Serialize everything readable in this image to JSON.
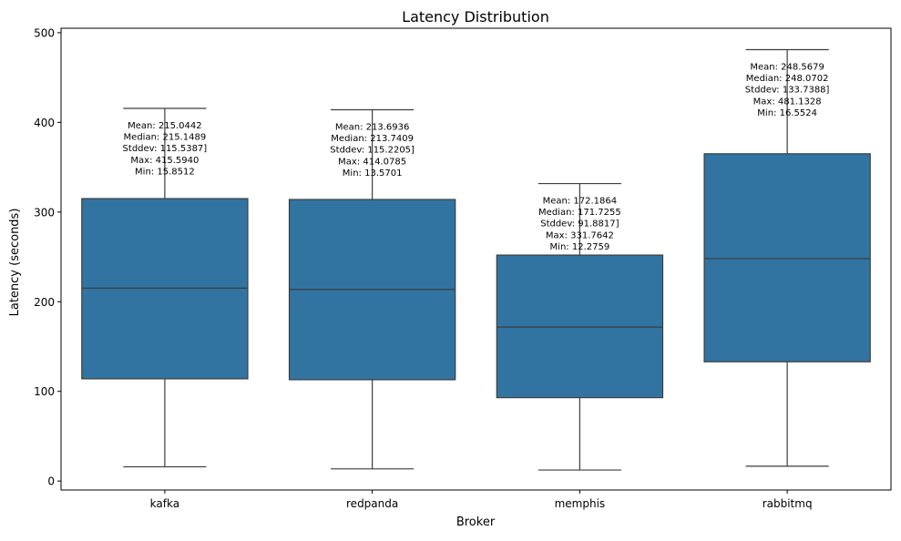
{
  "chart_data": {
    "type": "box",
    "title": "Latency Distribution",
    "xlabel": "Broker",
    "ylabel": "Latency (seconds)",
    "ylim": [
      -10,
      505
    ],
    "yticks": [
      0,
      100,
      200,
      300,
      400,
      500
    ],
    "grid": false,
    "box_color": "#3274a1",
    "categories": [
      "kafka",
      "redpanda",
      "memphis",
      "rabbitmq"
    ],
    "boxes": [
      {
        "category": "kafka",
        "min": 15.8512,
        "q1": 114,
        "median": 215.1489,
        "q3": 315,
        "max": 415.594,
        "annotation": [
          "Mean: 215.0442",
          "Median: 215.1489",
          "Stddev: 115.5387]",
          "Max: 415.5940",
          "Min: 15.8512"
        ]
      },
      {
        "category": "redpanda",
        "min": 13.5701,
        "q1": 113,
        "median": 213.7409,
        "q3": 314,
        "max": 414.0785,
        "annotation": [
          "Mean: 213.6936",
          "Median: 213.7409",
          "Stddev: 115.2205]",
          "Max: 414.0785",
          "Min: 13.5701"
        ]
      },
      {
        "category": "memphis",
        "min": 12.2759,
        "q1": 93,
        "median": 171.7255,
        "q3": 252,
        "max": 331.7642,
        "annotation": [
          "Mean: 172.1864",
          "Median: 171.7255",
          "Stddev: 91.8817]",
          "Max: 331.7642",
          "Min: 12.2759"
        ]
      },
      {
        "category": "rabbitmq",
        "min": 16.5524,
        "q1": 133,
        "median": 248.0702,
        "q3": 365,
        "max": 481.1328,
        "annotation": [
          "Mean: 248.5679",
          "Median: 248.0702",
          "Stddev: 133.7388]",
          "Max: 481.1328",
          "Min: 16.5524"
        ]
      }
    ]
  }
}
